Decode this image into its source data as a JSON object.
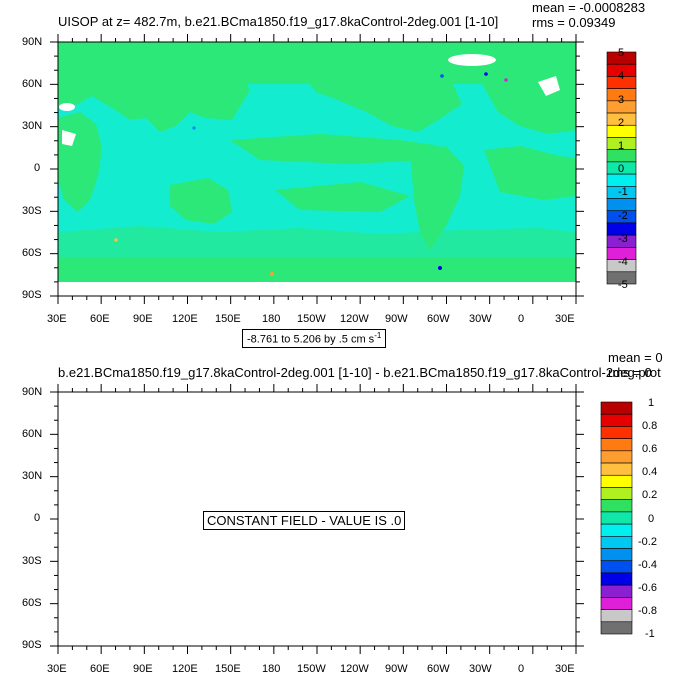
{
  "panel_top": {
    "title": "UISOP at z= 482.7m, b.e21.BCma1850.f19_g17.8kaControl-2deg.001 [1-10]",
    "mean_label": "mean = -0.0008283",
    "rms_label": "rms = 0.09349",
    "range_label_main": "-8.761 to 5.206 by .5 cm s",
    "range_label_sup": "-1",
    "lat_ticks": [
      "90N",
      "60N",
      "30N",
      "0",
      "30S",
      "60S",
      "90S"
    ],
    "lon_ticks": [
      "30E",
      "60E",
      "90E",
      "120E",
      "150E",
      "180",
      "150W",
      "120W",
      "90W",
      "60W",
      "30W",
      "0",
      "30E"
    ],
    "colorbar": {
      "labels": [
        "5",
        "4",
        "3",
        "2",
        "1",
        "0",
        "-1",
        "-2",
        "-3",
        "-4",
        "-5"
      ],
      "colors": [
        "#b80000",
        "#e60000",
        "#ff3000",
        "#ff7a10",
        "#ff9e30",
        "#ffbf40",
        "#ffff00",
        "#b0f020",
        "#30e060",
        "#10e8a8",
        "#00f0f0",
        "#00c8f0",
        "#0090f0",
        "#0050f0",
        "#0000e8",
        "#8a20d0",
        "#e020d8",
        "#c8c8c8",
        "#707070"
      ],
      "field_colors": {
        "land": "#2ce878",
        "ocean": "#14ecd0",
        "ice": "#ffffff"
      }
    }
  },
  "panel_bottom": {
    "title": "b.e21.BCma1850.f19_g17.8kaControl-2deg.001 [1-10] - b.e21.BCma1850.f19_g17.8kaControl-2deg.prot",
    "mean_label": "mean = 0",
    "rms_label": "rms = 0",
    "constant_label": "CONSTANT FIELD - VALUE IS .0",
    "lat_ticks": [
      "90N",
      "60N",
      "30N",
      "0",
      "30S",
      "60S",
      "90S"
    ],
    "lon_ticks": [
      "30E",
      "60E",
      "90E",
      "120E",
      "150E",
      "180",
      "150W",
      "120W",
      "90W",
      "60W",
      "30W",
      "0",
      "30E"
    ],
    "colorbar": {
      "labels": [
        "1",
        "0.8",
        "0.6",
        "0.4",
        "0.2",
        "0",
        "-0.2",
        "-0.4",
        "-0.6",
        "-0.8",
        "-1"
      ],
      "colors": [
        "#b80000",
        "#e60000",
        "#ff3000",
        "#ff7a10",
        "#ff9e30",
        "#ffbf40",
        "#ffff00",
        "#b0f020",
        "#30e060",
        "#10e8a8",
        "#00f0f0",
        "#00c8f0",
        "#0090f0",
        "#0050f0",
        "#0000e8",
        "#8a20d0",
        "#e020d8",
        "#c8c8c8",
        "#707070"
      ]
    }
  }
}
